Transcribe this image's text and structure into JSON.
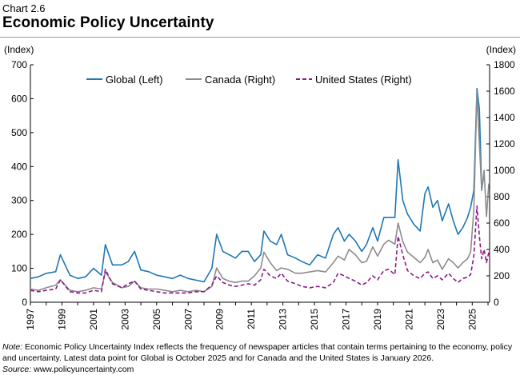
{
  "header": {
    "chart_number": "Chart 2.6",
    "title": "Economic Policy Uncertainty"
  },
  "note": {
    "note_label": "Note:",
    "note_text": " Economic Policy Uncertainty Index reflects the frequency of newspaper articles that contain terms pertaining to the economy, policy and uncertainty. Latest data point for Global is October 2025 and for Canada and the United States is January 2026.",
    "source_label": "Source:",
    "source_text": " www.policyuncertainty.com"
  },
  "colors": {
    "global": "#1f77b4",
    "canada": "#8c8c8c",
    "us": "#8b1a89",
    "axis": "#000000"
  },
  "chart_data": {
    "type": "line",
    "title": "Economic Policy Uncertainty",
    "left_axis_label": "(Index)",
    "right_axis_label": "(Index)",
    "left_ylim": [
      0,
      700
    ],
    "right_ylim": [
      0,
      1800
    ],
    "left_ticks": [
      "0",
      "100",
      "200",
      "300",
      "400",
      "500",
      "600",
      "700"
    ],
    "right_ticks": [
      "0",
      "200",
      "400",
      "600",
      "800",
      "1000",
      "1200",
      "1400",
      "1600",
      "1800"
    ],
    "x_range": [
      1997,
      2026.1
    ],
    "x_tick_labels": [
      "1997",
      "1999",
      "2001",
      "2003",
      "2005",
      "2007",
      "2009",
      "2011",
      "2013",
      "2015",
      "2017",
      "2019",
      "2021",
      "2023",
      "2025"
    ],
    "legend_position": "top",
    "series": [
      {
        "name": "Global (Left)",
        "axis": "left",
        "style": "solid",
        "x": [
          1997,
          1997.5,
          1998,
          1998.6,
          1998.9,
          1999.5,
          2000,
          2000.5,
          2001,
          2001.5,
          2001.75,
          2002.2,
          2002.8,
          2003.2,
          2003.6,
          2004,
          2004.5,
          2005,
          2005.5,
          2006,
          2006.5,
          2007,
          2007.5,
          2008,
          2008.5,
          2008.8,
          2009.2,
          2009.6,
          2010,
          2010.4,
          2010.8,
          2011.2,
          2011.6,
          2011.8,
          2012.2,
          2012.6,
          2012.9,
          2013.3,
          2013.8,
          2014.2,
          2014.7,
          2015.2,
          2015.7,
          2016.2,
          2016.5,
          2016.9,
          2017.2,
          2017.6,
          2018,
          2018.3,
          2018.7,
          2019,
          2019.4,
          2019.7,
          2020.1,
          2020.3,
          2020.6,
          2020.9,
          2021.3,
          2021.7,
          2022,
          2022.2,
          2022.5,
          2022.8,
          2023.1,
          2023.5,
          2023.8,
          2024.1,
          2024.4,
          2024.7,
          2024.9,
          2025.1,
          2025.3,
          2025.45,
          2025.6,
          2025.75
        ],
        "values": [
          70,
          75,
          85,
          90,
          140,
          80,
          70,
          75,
          100,
          80,
          170,
          110,
          110,
          120,
          150,
          95,
          90,
          80,
          75,
          70,
          80,
          70,
          65,
          60,
          100,
          200,
          150,
          140,
          130,
          150,
          150,
          120,
          140,
          210,
          180,
          170,
          200,
          140,
          130,
          120,
          110,
          140,
          130,
          200,
          220,
          180,
          200,
          180,
          150,
          170,
          220,
          180,
          250,
          250,
          250,
          420,
          300,
          260,
          230,
          210,
          320,
          340,
          280,
          300,
          240,
          290,
          240,
          200,
          220,
          250,
          280,
          330,
          630,
          570,
          330,
          380
        ]
      },
      {
        "name": "Canada (Right)",
        "axis": "right",
        "style": "solid",
        "x": [
          1997,
          1997.5,
          1998,
          1998.6,
          1998.9,
          1999.5,
          2000,
          2000.5,
          2001,
          2001.5,
          2001.75,
          2002.2,
          2002.8,
          2003.2,
          2003.6,
          2004,
          2004.5,
          2005,
          2005.5,
          2006,
          2006.5,
          2007,
          2007.5,
          2008,
          2008.5,
          2008.8,
          2009.2,
          2009.6,
          2010,
          2010.4,
          2010.8,
          2011.2,
          2011.6,
          2011.8,
          2012.2,
          2012.6,
          2012.9,
          2013.3,
          2013.8,
          2014.2,
          2014.7,
          2015.2,
          2015.7,
          2016.2,
          2016.5,
          2016.9,
          2017.2,
          2017.6,
          2018,
          2018.3,
          2018.7,
          2019,
          2019.4,
          2019.7,
          2020.1,
          2020.3,
          2020.6,
          2020.9,
          2021.3,
          2021.7,
          2022,
          2022.2,
          2022.5,
          2022.8,
          2023.1,
          2023.5,
          2023.8,
          2024.1,
          2024.4,
          2024.7,
          2024.9,
          2025.1,
          2025.3,
          2025.45,
          2025.6,
          2025.75,
          2025.9,
          2026.05
        ],
        "values": [
          100,
          90,
          110,
          130,
          170,
          90,
          80,
          90,
          110,
          100,
          230,
          150,
          110,
          120,
          160,
          110,
          100,
          100,
          90,
          80,
          90,
          80,
          90,
          80,
          120,
          260,
          180,
          160,
          150,
          160,
          160,
          200,
          260,
          380,
          300,
          240,
          260,
          250,
          220,
          220,
          230,
          240,
          230,
          300,
          350,
          320,
          400,
          360,
          300,
          310,
          420,
          350,
          440,
          470,
          440,
          600,
          460,
          380,
          340,
          300,
          340,
          400,
          300,
          320,
          250,
          330,
          300,
          260,
          300,
          330,
          380,
          700,
          1600,
          1200,
          850,
          1000,
          650,
          900
        ]
      },
      {
        "name": "United States (Right)",
        "axis": "right",
        "style": "dashed",
        "x": [
          1997,
          1997.5,
          1998,
          1998.6,
          1998.9,
          1999.5,
          2000,
          2000.5,
          2001,
          2001.5,
          2001.75,
          2002.2,
          2002.8,
          2003.2,
          2003.6,
          2004,
          2004.5,
          2005,
          2005.5,
          2006,
          2006.5,
          2007,
          2007.5,
          2008,
          2008.5,
          2008.8,
          2009.2,
          2009.6,
          2010,
          2010.4,
          2010.8,
          2011.2,
          2011.6,
          2011.8,
          2012.2,
          2012.6,
          2012.9,
          2013.3,
          2013.8,
          2014.2,
          2014.7,
          2015.2,
          2015.7,
          2016.2,
          2016.5,
          2016.9,
          2017.2,
          2017.6,
          2018,
          2018.3,
          2018.7,
          2019,
          2019.4,
          2019.7,
          2020.1,
          2020.3,
          2020.6,
          2020.9,
          2021.3,
          2021.7,
          2022,
          2022.2,
          2022.5,
          2022.8,
          2023.1,
          2023.5,
          2023.8,
          2024.1,
          2024.4,
          2024.7,
          2024.9,
          2025.1,
          2025.3,
          2025.45,
          2025.6,
          2025.75,
          2025.9,
          2026.05
        ],
        "values": [
          90,
          80,
          90,
          100,
          170,
          80,
          70,
          70,
          90,
          80,
          250,
          140,
          110,
          140,
          160,
          100,
          90,
          80,
          70,
          70,
          70,
          70,
          80,
          80,
          130,
          200,
          150,
          130,
          120,
          130,
          140,
          130,
          170,
          250,
          200,
          180,
          220,
          160,
          140,
          120,
          110,
          120,
          110,
          150,
          220,
          200,
          180,
          160,
          130,
          150,
          200,
          170,
          240,
          250,
          210,
          500,
          360,
          240,
          200,
          180,
          220,
          230,
          180,
          200,
          170,
          220,
          180,
          150,
          180,
          190,
          210,
          350,
          730,
          500,
          330,
          400,
          300,
          380
        ]
      }
    ]
  }
}
